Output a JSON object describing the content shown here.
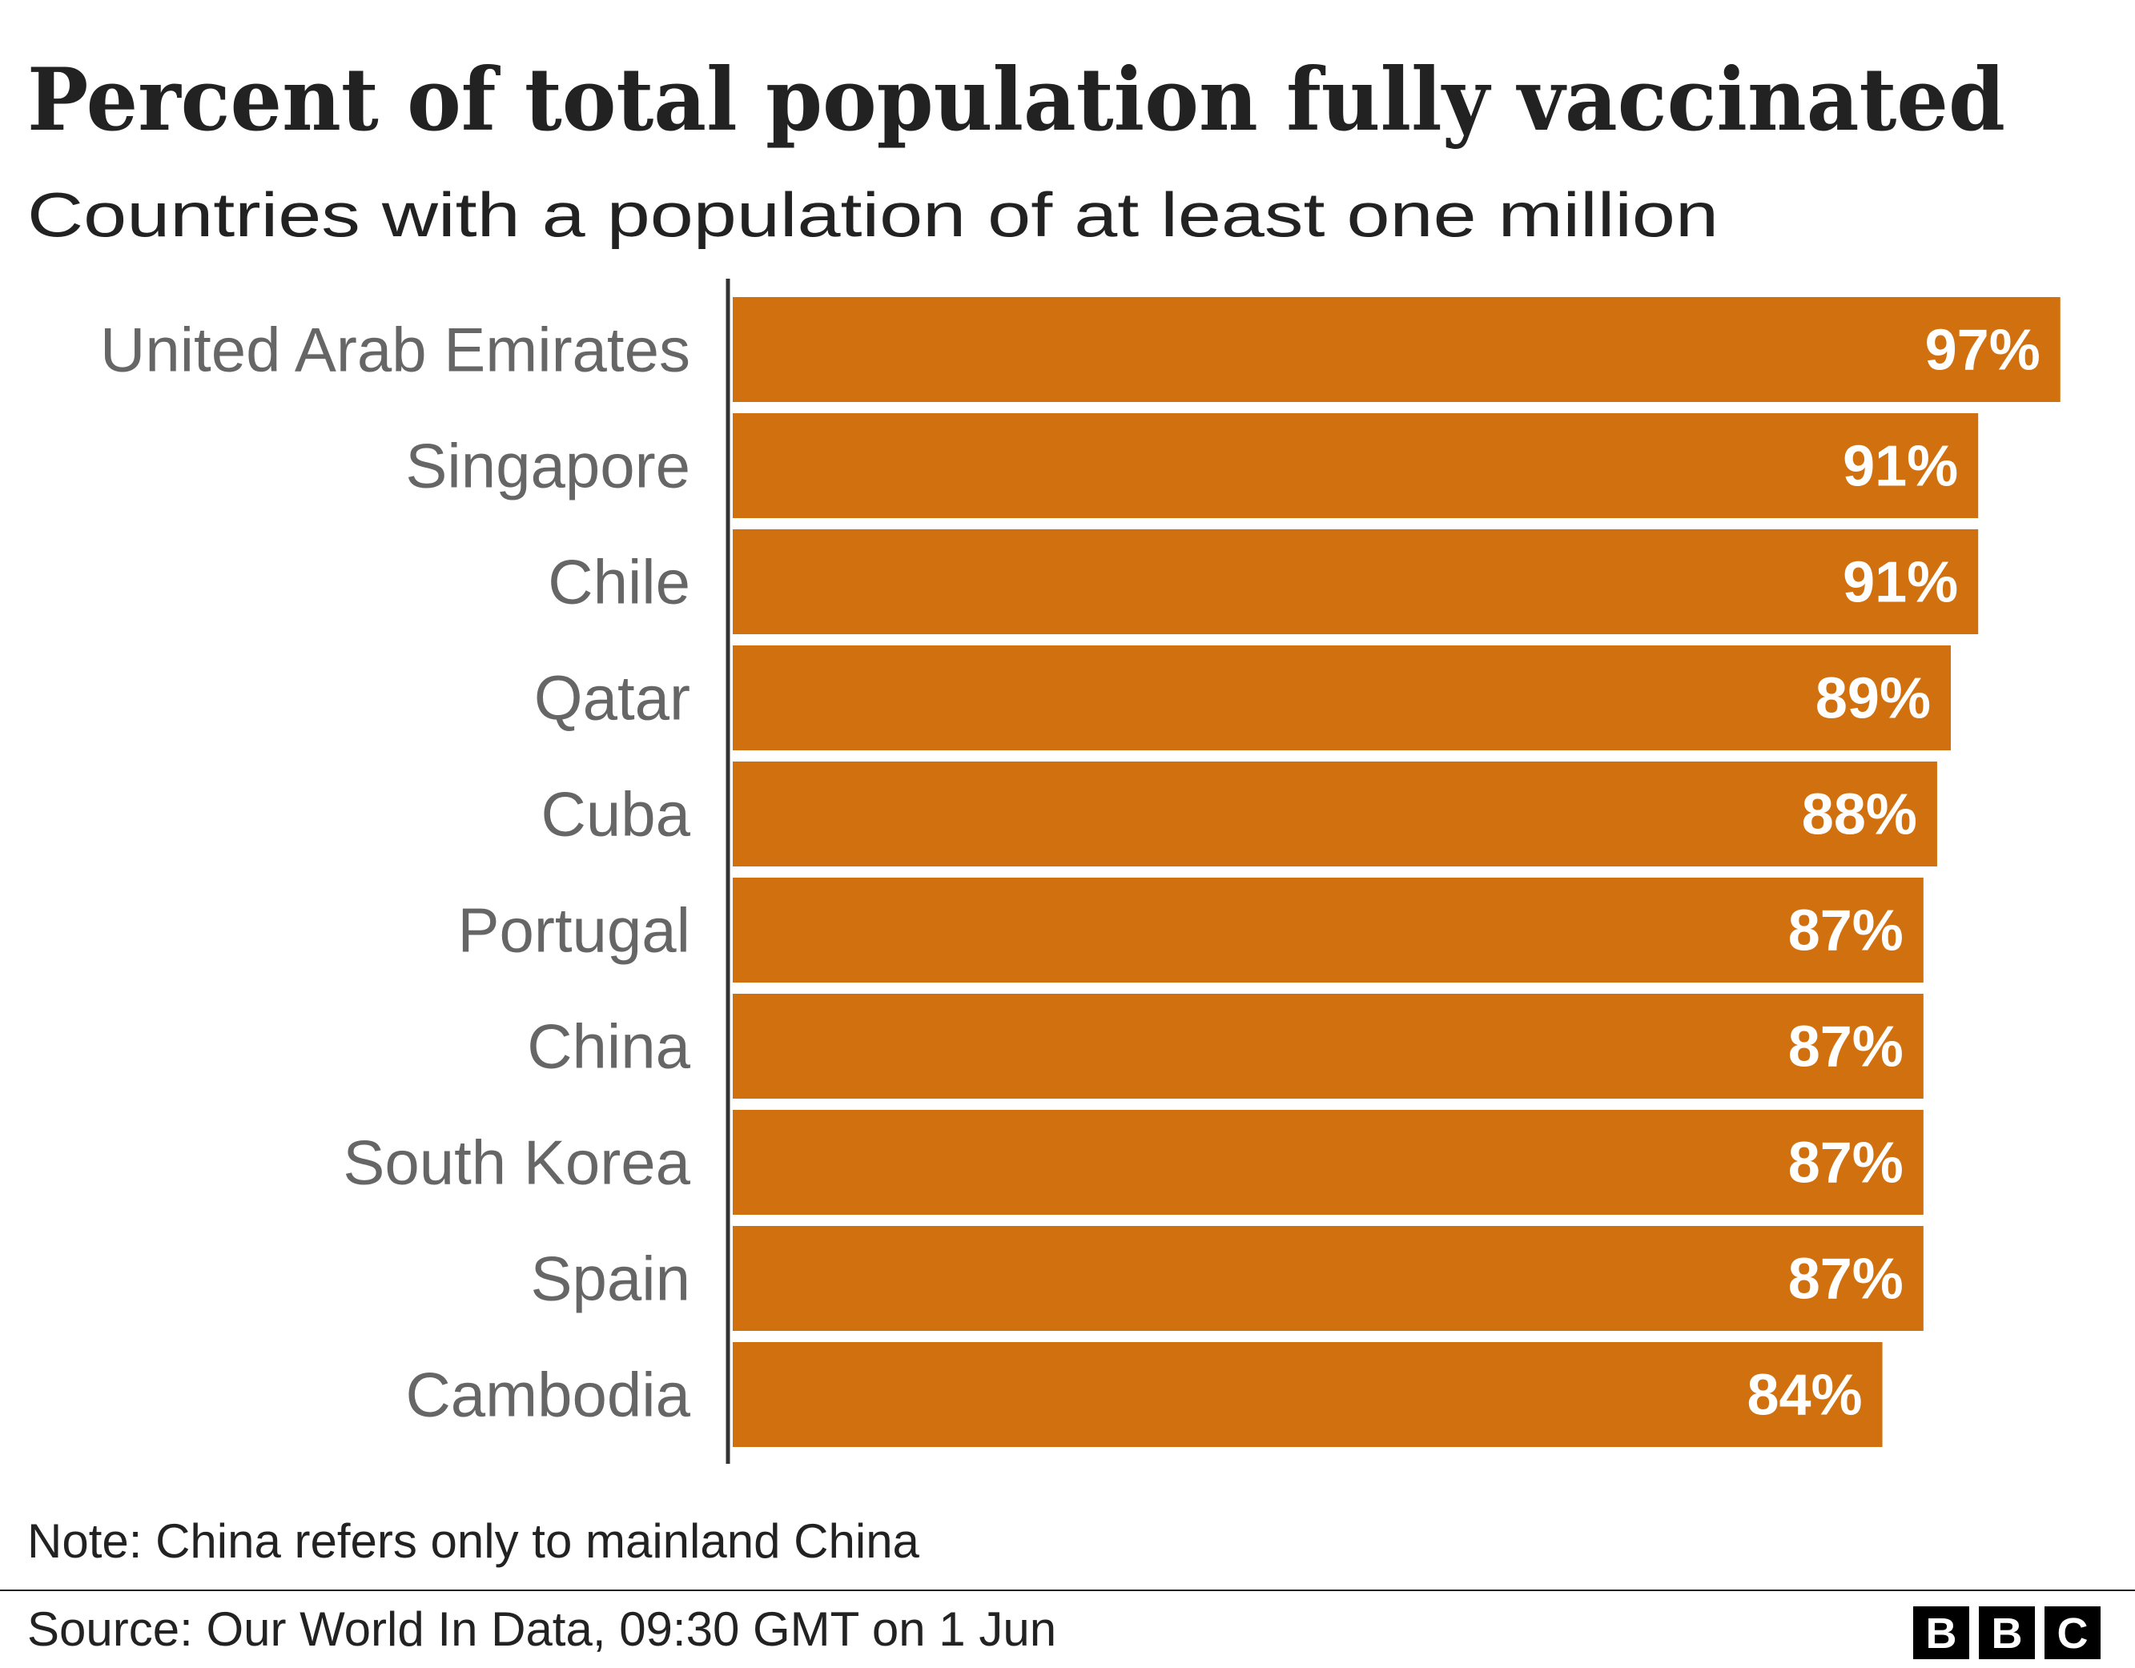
{
  "chart_data": {
    "type": "bar",
    "orientation": "horizontal",
    "title": "Percent of total population fully vaccinated",
    "subtitle": "Countries with a population of at least one million",
    "categories": [
      "United Arab Emirates",
      "Singapore",
      "Chile",
      "Qatar",
      "Cuba",
      "Portugal",
      "China",
      "South Korea",
      "Spain",
      "Cambodia"
    ],
    "values": [
      97,
      91,
      91,
      89,
      88,
      87,
      87,
      87,
      87,
      84
    ],
    "value_labels": [
      "97%",
      "91%",
      "91%",
      "89%",
      "88%",
      "87%",
      "87%",
      "87%",
      "87%",
      "84%"
    ],
    "color": "#d1700e",
    "note": "Note: China refers only to mainland China",
    "source": "Source: Our World In Data, 09:30 GMT on 1 Jun",
    "logo": [
      "B",
      "B",
      "C"
    ]
  }
}
